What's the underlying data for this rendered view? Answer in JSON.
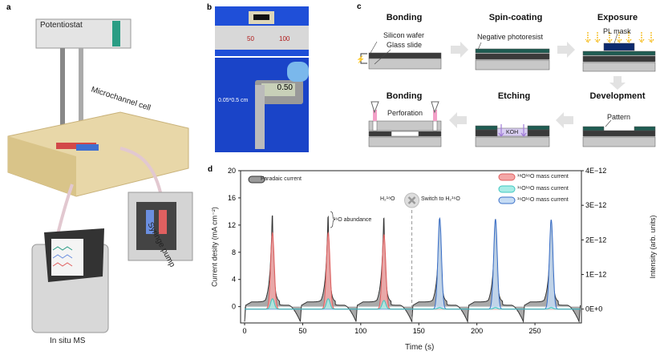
{
  "panels": {
    "a": "a",
    "b": "b",
    "c": "c",
    "d": "d"
  },
  "panel_a": {
    "potentiostat": "Potentiostat",
    "cell": "Microchannel cell",
    "pump": "Syringe pump",
    "ms": "In situ MS"
  },
  "panel_b": {
    "ruler_50": "50",
    "ruler_100": "100",
    "size": "0.05*0.5 cm",
    "caliper": "0.50"
  },
  "panel_c": {
    "steps": [
      "Bonding",
      "Spin-coating",
      "Exposure",
      "Development",
      "Etching",
      "Bonding"
    ],
    "silicon": "Silicon wafer",
    "glass": "Glass slide",
    "photoresist": "Negative photoresist",
    "mask": "PL mask",
    "pattern": "Pattern",
    "koh": "KOH",
    "perforation": "Perforation",
    "colors": {
      "silicon": "#3a3a3a",
      "glass": "#c8c8c8",
      "resist": "#1f5c52",
      "mask": "#0d2a6e",
      "uv": "#f5b400",
      "koh": "#a07ad8"
    }
  },
  "chart_data": {
    "type": "line",
    "xlabel": "Time (s)",
    "ylabel": "Current desity (mA cm⁻²)",
    "y2label": "Intensity (arb. units)",
    "xlim": [
      0,
      290
    ],
    "ylim": [
      -2.4,
      20
    ],
    "y2lim": [
      -4e-13,
      4e-12
    ],
    "xticks": [
      0,
      50,
      100,
      150,
      200,
      250
    ],
    "yticks": [
      0,
      4,
      8,
      12,
      16,
      20
    ],
    "y2ticks": [
      "0E+0",
      "1E−12",
      "2E−12",
      "3E−12",
      "4E−12"
    ],
    "cycle_period": 48,
    "series": [
      {
        "name": "Faradaic current",
        "axis": "left",
        "color": "#333333",
        "fill": "#9a9a9a",
        "peak_times": [
          24,
          72,
          120,
          168,
          216,
          264
        ],
        "peak_values": [
          13.4,
          13.2,
          13.0,
          12.9,
          12.8,
          12.7
        ]
      },
      {
        "name": "¹⁸O¹⁸O mass current",
        "axis": "right",
        "color": "#e06060",
        "fill": "#f4a8a8",
        "peak_times": [
          24,
          72,
          120,
          168,
          216,
          264
        ],
        "peak_values": [
          2.2e-12,
          2.2e-12,
          2.15e-12,
          0,
          0,
          0
        ]
      },
      {
        "name": "¹⁶O¹⁸O mass current",
        "axis": "right",
        "color": "#40c8c0",
        "fill": "#a8ece6",
        "peak_times": [
          24,
          72,
          120,
          168,
          216,
          264
        ],
        "peak_values": [
          3e-13,
          3e-13,
          2.5e-13,
          5e-14,
          5e-14,
          5e-14
        ]
      },
      {
        "name": "¹⁶O¹⁶O mass current",
        "axis": "right",
        "color": "#3a6fc8",
        "fill": "#c6dcf4",
        "peak_times": [
          24,
          72,
          120,
          168,
          216,
          264
        ],
        "peak_values": [
          0,
          0,
          0,
          2.62e-12,
          2.6e-12,
          2.58e-12
        ]
      }
    ],
    "annotations": {
      "abundance": "¹⁶O abundance",
      "h2o18": "H₂¹⁸O",
      "switch": "Switch to H₂¹⁶O",
      "switch_time": 144
    }
  }
}
